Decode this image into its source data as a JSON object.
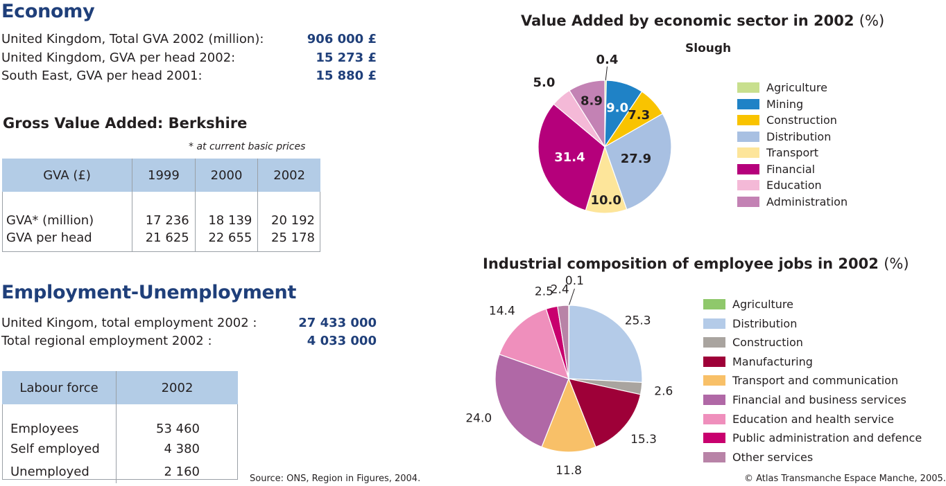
{
  "economy": {
    "title": "Economy",
    "rows": [
      {
        "label": "United Kingdom, Total GVA 2002 (million):",
        "value": "906 000 £"
      },
      {
        "label": "United Kingdom, GVA per head 2002:",
        "value": "15 273 £"
      },
      {
        "label": "South East, GVA per head 2001:",
        "value": "15 880 £"
      }
    ]
  },
  "gva_table": {
    "title": "Gross Value Added: Berkshire",
    "note": "* at current basic prices",
    "headers": [
      "GVA (£)",
      "1999",
      "2000",
      "2002"
    ],
    "rows": [
      {
        "label": "GVA* (million)",
        "values": [
          "17 236",
          "18 139",
          "20 192"
        ]
      },
      {
        "label": "GVA per head",
        "values": [
          "21 625",
          "22 655",
          "25 178"
        ]
      }
    ]
  },
  "employment": {
    "title": "Employment-Unemployment",
    "rows": [
      {
        "label": "United Kingom, total employment 2002 :",
        "value": "27 433 000"
      },
      {
        "label": "Total regional employment 2002 :",
        "value": "4 033 000"
      }
    ]
  },
  "labour_table": {
    "headers": [
      "Labour force",
      "2002"
    ],
    "rows": [
      {
        "label": "Employees",
        "value": "53 460"
      },
      {
        "label": "Self employed",
        "value": "4 380"
      },
      {
        "label": "Unemployed",
        "value": "2 160"
      }
    ]
  },
  "source": "Source: ONS, Region in Figures, 2004.",
  "copyright": "© Atlas Transmanche Espace Manche, 2005.",
  "chart_data": [
    {
      "type": "pie",
      "title": "Value Added by economic sector in 2002",
      "title_unit": "(%)",
      "subtitle": "Slough",
      "legend_position": "right",
      "slices": [
        {
          "label": "Agriculture",
          "value": 0.4,
          "color": "#c8df8e",
          "label_text": "0.4"
        },
        {
          "label": "Mining",
          "value": 9.0,
          "color": "#1f82c6",
          "label_text": "9.0"
        },
        {
          "label": "Construction",
          "value": 7.3,
          "color": "#f9c300",
          "label_text": "7.3"
        },
        {
          "label": "Distribution",
          "value": 27.9,
          "color": "#a8c0e2",
          "label_text": "27.9"
        },
        {
          "label": "Transport",
          "value": 10.0,
          "color": "#fde59a",
          "label_text": "10.0"
        },
        {
          "label": "Financial",
          "value": 31.4,
          "color": "#b5007b",
          "label_text": "31.4"
        },
        {
          "label": "Education",
          "value": 5.0,
          "color": "#f4b9d7",
          "label_text": "5.0"
        },
        {
          "label": "Administration",
          "value": 8.9,
          "color": "#c382b4",
          "label_text": "8.9"
        }
      ]
    },
    {
      "type": "pie",
      "title": "Industrial composition of employee jobs in 2002",
      "title_unit": "(%)",
      "legend_position": "right",
      "slices": [
        {
          "label": "Agriculture",
          "value": 0.1,
          "color": "#8fc86b",
          "label_text": "0.1"
        },
        {
          "label": "Distribution",
          "value": 25.3,
          "color": "#b4cbe8",
          "label_text": "25.3"
        },
        {
          "label": "Construction",
          "value": 2.6,
          "color": "#a9a49f",
          "label_text": "2.6"
        },
        {
          "label": "Manufacturing",
          "value": 15.3,
          "color": "#9e0038",
          "label_text": "15.3"
        },
        {
          "label": "Transport and communication",
          "value": 11.8,
          "color": "#f8c068",
          "label_text": "11.8"
        },
        {
          "label": "Financial and business services",
          "value": 24.0,
          "color": "#b068a6",
          "label_text": "24.0"
        },
        {
          "label": "Education and health service",
          "value": 14.4,
          "color": "#ef8fbc",
          "label_text": "14.4"
        },
        {
          "label": "Public administration and defence",
          "value": 2.5,
          "color": "#c8006e",
          "label_text": "2.5"
        },
        {
          "label": "Other services",
          "value": 2.4,
          "color": "#b883a7",
          "label_text": "2.4"
        }
      ]
    }
  ]
}
